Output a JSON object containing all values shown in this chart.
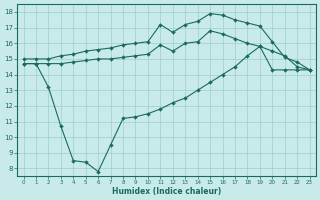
{
  "xlabel": "Humidex (Indice chaleur)",
  "xlim_min": -0.5,
  "xlim_max": 23.5,
  "ylim_min": 7.5,
  "ylim_max": 18.5,
  "xticks": [
    0,
    1,
    2,
    3,
    4,
    5,
    6,
    7,
    8,
    9,
    10,
    11,
    12,
    13,
    14,
    15,
    16,
    17,
    18,
    19,
    20,
    21,
    22,
    23
  ],
  "yticks": [
    8,
    9,
    10,
    11,
    12,
    13,
    14,
    15,
    16,
    17,
    18
  ],
  "bg_color": "#c8eae8",
  "grid_color": "#9ecece",
  "line_color": "#1a6b5a",
  "line_top_x": [
    0,
    1,
    2,
    3,
    4,
    5,
    6,
    7,
    8,
    9,
    10,
    11,
    12,
    13,
    14,
    15,
    16,
    17,
    18,
    19,
    20,
    21,
    22,
    23
  ],
  "line_top_y": [
    15.0,
    15.0,
    15.0,
    15.2,
    15.3,
    15.5,
    15.6,
    15.7,
    15.9,
    16.0,
    16.1,
    17.2,
    16.7,
    17.2,
    17.4,
    17.9,
    17.8,
    17.5,
    17.3,
    17.1,
    16.1,
    15.1,
    14.8,
    14.3
  ],
  "line_mid_x": [
    0,
    1,
    2,
    3,
    4,
    5,
    6,
    7,
    8,
    9,
    10,
    11,
    12,
    13,
    14,
    15,
    16,
    17,
    18,
    19,
    20,
    21,
    22,
    23
  ],
  "line_mid_y": [
    14.7,
    14.7,
    14.7,
    14.7,
    14.8,
    14.9,
    15.0,
    15.0,
    15.1,
    15.2,
    15.3,
    15.9,
    15.5,
    16.0,
    16.1,
    16.8,
    16.6,
    16.3,
    16.0,
    15.8,
    15.5,
    15.2,
    14.5,
    14.3
  ],
  "line_bot_x": [
    0,
    1,
    2,
    3,
    4,
    5,
    6,
    7,
    8,
    9,
    10,
    11,
    12,
    13,
    14,
    15,
    16,
    17,
    18,
    19,
    20,
    21,
    22,
    23
  ],
  "line_bot_y": [
    14.7,
    14.7,
    13.2,
    10.7,
    8.5,
    8.4,
    7.8,
    9.5,
    11.2,
    11.3,
    11.5,
    11.8,
    12.2,
    12.5,
    13.0,
    13.5,
    14.0,
    14.5,
    15.2,
    15.8,
    14.3,
    14.3,
    14.3,
    14.3
  ]
}
